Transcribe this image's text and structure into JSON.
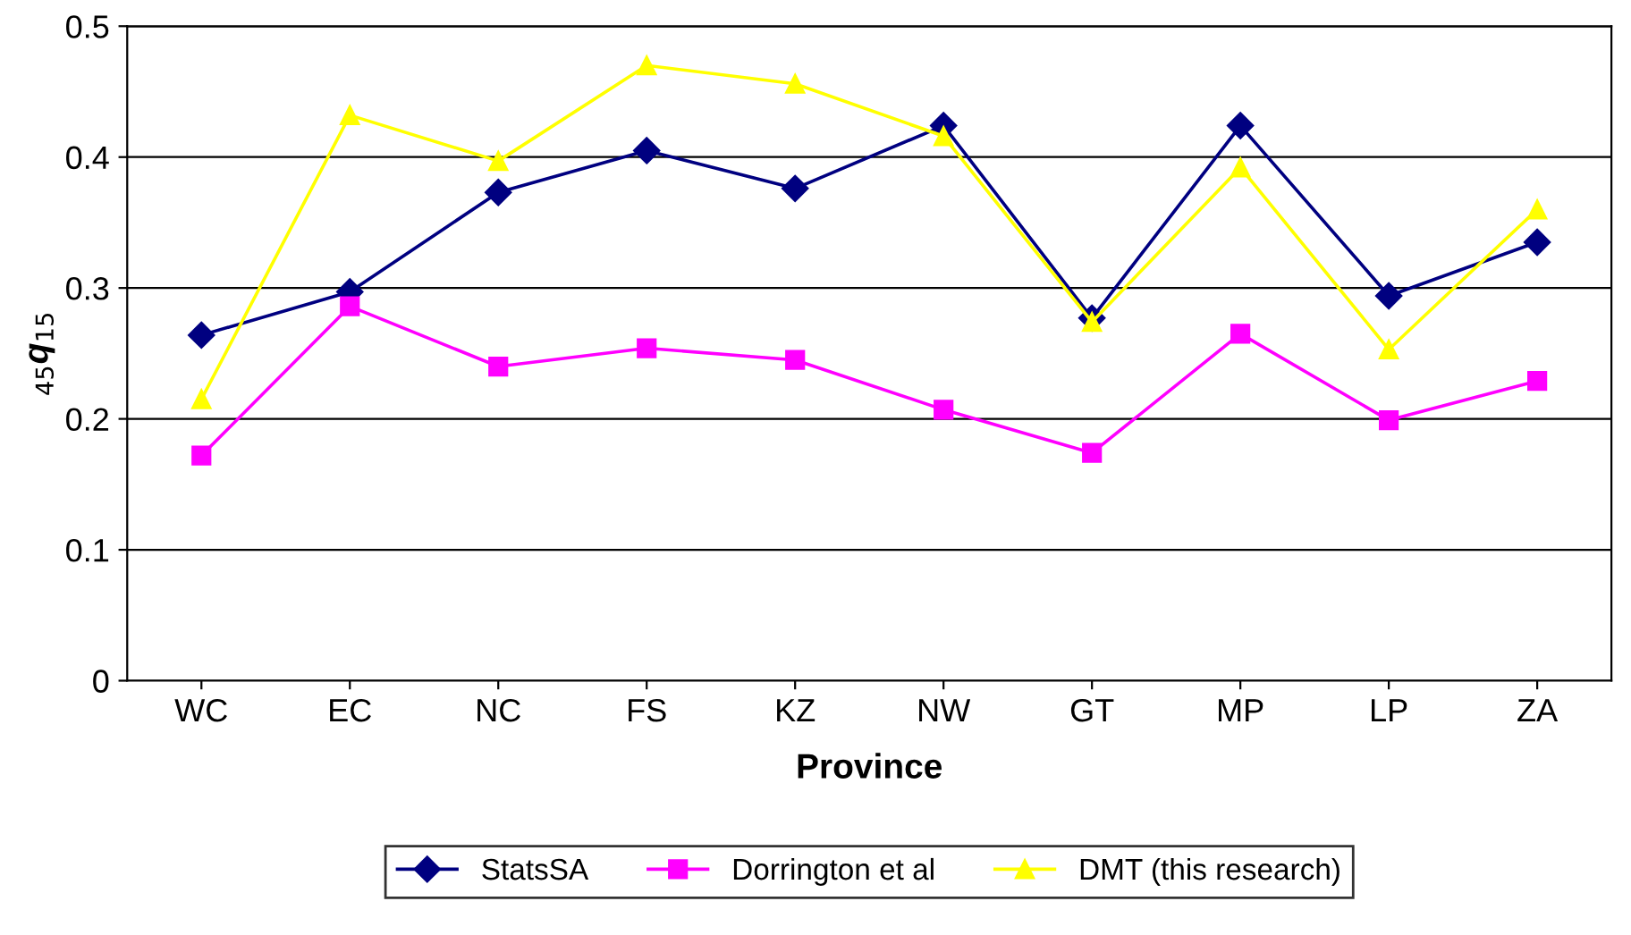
{
  "chart_data": {
    "type": "line",
    "xlabel": "Province",
    "ylabel": "$_{45}$q$_{15}$",
    "categories": [
      "WC",
      "EC",
      "NC",
      "FS",
      "KZ",
      "NW",
      "GT",
      "MP",
      "LP",
      "ZA"
    ],
    "series": [
      {
        "name": "StatsSA",
        "color": "#000080",
        "marker": "diamond",
        "values": [
          0.264,
          0.297,
          0.373,
          0.405,
          0.376,
          0.424,
          0.277,
          0.424,
          0.294,
          0.335
        ]
      },
      {
        "name": "Dorrington et al",
        "color": "#ff00ff",
        "marker": "square",
        "values": [
          0.172,
          0.286,
          0.24,
          0.254,
          0.245,
          0.207,
          0.174,
          0.265,
          0.199,
          0.229
        ]
      },
      {
        "name": "DMT (this research)",
        "color": "#ffff00",
        "marker": "triangle",
        "values": [
          0.215,
          0.432,
          0.397,
          0.47,
          0.456,
          0.416,
          0.274,
          0.392,
          0.253,
          0.36
        ]
      }
    ],
    "ylim": [
      0,
      0.5
    ],
    "yticks": [
      0,
      0.1,
      0.2,
      0.3,
      0.4,
      0.5
    ],
    "grid": "y",
    "legend": "bottom",
    "line_style": "solid"
  }
}
